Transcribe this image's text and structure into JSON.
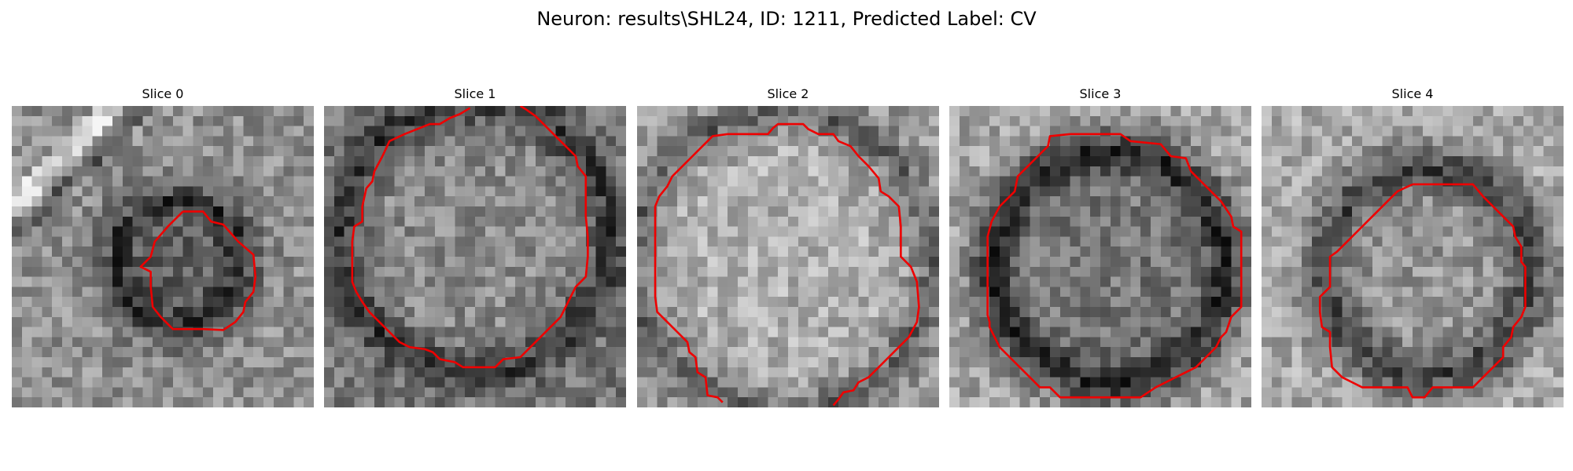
{
  "title": "Neuron: results\\SHL24, ID: 1211, Predicted Label: CV",
  "slices": [
    {
      "label": "Slice 0"
    },
    {
      "label": "Slice 1"
    },
    {
      "label": "Slice 2"
    },
    {
      "label": "Slice 3"
    },
    {
      "label": "Slice 4"
    }
  ],
  "contour_color": "#ee0000"
}
